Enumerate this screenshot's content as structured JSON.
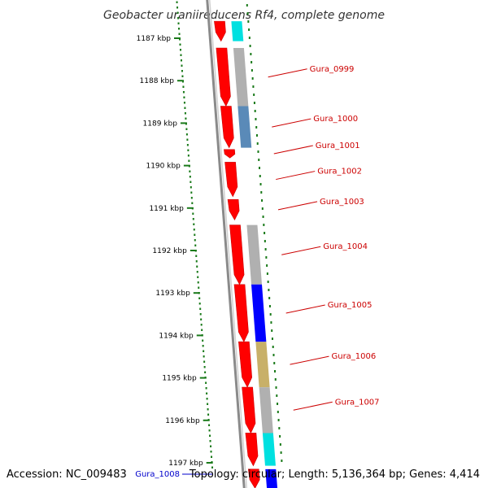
{
  "map": {
    "title": "Geobacter uraniireducens Rf4, complete genome",
    "accession": "Accession: NC_009483",
    "topology": "Topology: circular; Length: 5,136,364 bp; Genes: 4,414"
  },
  "colors": {
    "backbone": "#888888",
    "tick": "#1a7a1a",
    "gene_forward": "#ff0000",
    "gene_label": "#cc0000",
    "cog_grey": "#b0b0b0",
    "cog_steel": "#5a8ab8",
    "cog_blue": "#0000ff",
    "cog_olive": "#c8b068",
    "cog_cyan": "#00e0e0",
    "label_blue": "#0000cc"
  },
  "kbp_ticks": [
    "1187 kbp",
    "1188 kbp",
    "1189 kbp",
    "1190 kbp",
    "1191 kbp",
    "1192 kbp",
    "1193 kbp",
    "1194 kbp",
    "1195 kbp",
    "1196 kbp",
    "1197 kbp"
  ],
  "genes": [
    {
      "start": 1186.6,
      "end": 1187.07,
      "category": "cyan",
      "label": ""
    },
    {
      "start": 1187.23,
      "end": 1188.6,
      "category": "grey",
      "label": "Gura_0999"
    },
    {
      "start": 1188.6,
      "end": 1189.58,
      "category": "steel",
      "label": "Gura_1000"
    },
    {
      "start": 1189.62,
      "end": 1189.82,
      "category": "none",
      "label": "Gura_1001"
    },
    {
      "start": 1189.92,
      "end": 1190.73,
      "category": "none",
      "label": "Gura_1002"
    },
    {
      "start": 1190.8,
      "end": 1191.28,
      "category": "none",
      "label": "Gura_1003"
    },
    {
      "start": 1191.4,
      "end": 1192.8,
      "category": "grey",
      "label": "Gura_1004"
    },
    {
      "start": 1192.8,
      "end": 1194.15,
      "category": "blue",
      "label": "Gura_1005"
    },
    {
      "start": 1194.15,
      "end": 1195.22,
      "category": "olive",
      "label": "Gura_1006"
    },
    {
      "start": 1195.22,
      "end": 1196.3,
      "category": "grey",
      "label": "Gura_1007"
    },
    {
      "start": 1196.3,
      "end": 1197.07,
      "category": "cyan",
      "label": "Gura_1008"
    },
    {
      "start": 1197.15,
      "end": 1197.6,
      "category": "blue",
      "label": ""
    }
  ]
}
